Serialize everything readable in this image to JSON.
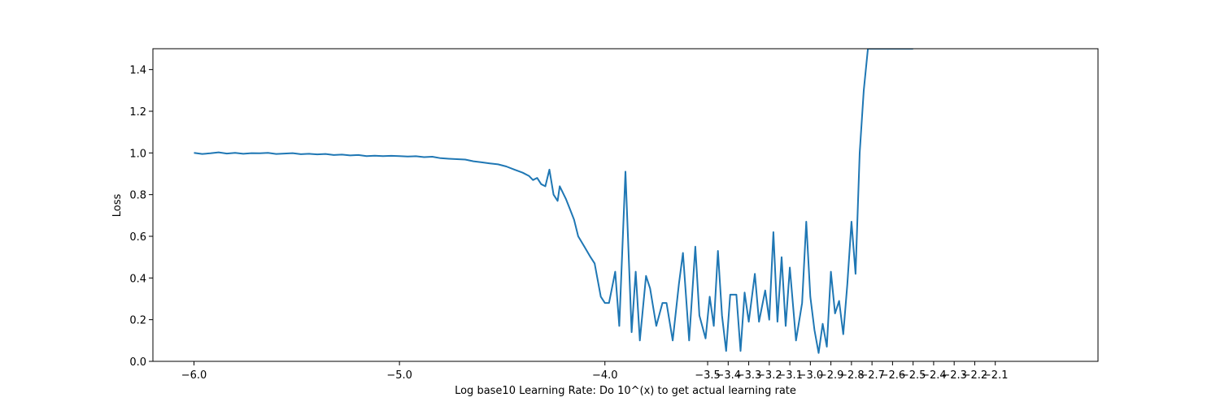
{
  "chart_data": {
    "type": "line",
    "title": "",
    "xlabel": "Log base10 Learning Rate: Do 10^(x) to get actual learning rate",
    "ylabel": "Loss",
    "xlim": [
      -6.2,
      -1.6
    ],
    "ylim": [
      0.0,
      1.5
    ],
    "grid": false,
    "line_color": "#1f77b4",
    "x_ticks": [
      {
        "value": -6.0,
        "label": "−6.0"
      },
      {
        "value": -5.0,
        "label": "−5.0"
      },
      {
        "value": -4.0,
        "label": "−4.0"
      },
      {
        "value": -3.5,
        "label": "−3.5"
      },
      {
        "value": -3.4,
        "label": "−3.4"
      },
      {
        "value": -3.3,
        "label": "−3.3"
      },
      {
        "value": -3.2,
        "label": "−3.2"
      },
      {
        "value": -3.1,
        "label": "−3.1"
      },
      {
        "value": -3.0,
        "label": "−3.0"
      },
      {
        "value": -2.9,
        "label": "−2.9"
      },
      {
        "value": -2.8,
        "label": "−2.8"
      },
      {
        "value": -2.7,
        "label": "−2.7"
      },
      {
        "value": -2.6,
        "label": "−2.6"
      },
      {
        "value": -2.5,
        "label": "−2.5"
      },
      {
        "value": -2.4,
        "label": "−2.4"
      },
      {
        "value": -2.3,
        "label": "−2.3"
      },
      {
        "value": -2.2,
        "label": "−2.2"
      },
      {
        "value": -2.1,
        "label": "−2.1"
      }
    ],
    "y_ticks": [
      {
        "value": 0.0,
        "label": "0.0"
      },
      {
        "value": 0.2,
        "label": "0.2"
      },
      {
        "value": 0.4,
        "label": "0.4"
      },
      {
        "value": 0.6,
        "label": "0.6"
      },
      {
        "value": 0.8,
        "label": "0.8"
      },
      {
        "value": 1.0,
        "label": "1.0"
      },
      {
        "value": 1.2,
        "label": "1.2"
      },
      {
        "value": 1.4,
        "label": "1.4"
      }
    ],
    "series": [
      {
        "x": [
          -6.0,
          -5.96,
          -5.92,
          -5.88,
          -5.84,
          -5.8,
          -5.76,
          -5.72,
          -5.68,
          -5.64,
          -5.6,
          -5.56,
          -5.52,
          -5.48,
          -5.44,
          -5.4,
          -5.36,
          -5.32,
          -5.28,
          -5.24,
          -5.2,
          -5.16,
          -5.12,
          -5.08,
          -5.04,
          -5.0,
          -4.96,
          -4.92,
          -4.88,
          -4.84,
          -4.8,
          -4.76,
          -4.72,
          -4.68,
          -4.64,
          -4.6,
          -4.56,
          -4.52,
          -4.48,
          -4.44,
          -4.4,
          -4.37,
          -4.35,
          -4.33,
          -4.31,
          -4.29,
          -4.27,
          -4.25,
          -4.23,
          -4.22,
          -4.19,
          -4.17,
          -4.15,
          -4.13,
          -4.1,
          -4.07,
          -4.05,
          -4.02,
          -4.0,
          -3.98,
          -3.95,
          -3.93,
          -3.9,
          -3.87,
          -3.85,
          -3.83,
          -3.8,
          -3.78,
          -3.75,
          -3.72,
          -3.7,
          -3.67,
          -3.64,
          -3.62,
          -3.59,
          -3.56,
          -3.54,
          -3.51,
          -3.49,
          -3.47,
          -3.45,
          -3.43,
          -3.41,
          -3.39,
          -3.36,
          -3.34,
          -3.32,
          -3.3,
          -3.27,
          -3.25,
          -3.22,
          -3.2,
          -3.18,
          -3.16,
          -3.14,
          -3.12,
          -3.1,
          -3.07,
          -3.04,
          -3.02,
          -3.0,
          -2.98,
          -2.96,
          -2.94,
          -2.92,
          -2.9,
          -2.88,
          -2.86,
          -2.84,
          -2.82,
          -2.8,
          -2.78,
          -2.76,
          -2.74,
          -2.72,
          -2.7,
          -2.68,
          -2.66,
          -2.64,
          -2.62,
          -2.6,
          -2.58,
          -2.56,
          -2.54,
          -2.52,
          -2.51,
          -2.5
        ],
        "y": [
          1.0,
          0.995,
          0.998,
          1.003,
          0.997,
          1.0,
          0.996,
          0.999,
          0.998,
          1.0,
          0.995,
          0.997,
          0.999,
          0.994,
          0.996,
          0.993,
          0.995,
          0.99,
          0.992,
          0.988,
          0.99,
          0.985,
          0.987,
          0.985,
          0.986,
          0.985,
          0.983,
          0.984,
          0.98,
          0.982,
          0.975,
          0.972,
          0.97,
          0.968,
          0.96,
          0.955,
          0.95,
          0.945,
          0.935,
          0.92,
          0.905,
          0.89,
          0.87,
          0.88,
          0.85,
          0.84,
          0.92,
          0.8,
          0.77,
          0.84,
          0.78,
          0.73,
          0.68,
          0.6,
          0.55,
          0.5,
          0.47,
          0.31,
          0.28,
          0.28,
          0.43,
          0.17,
          0.91,
          0.14,
          0.43,
          0.1,
          0.41,
          0.35,
          0.17,
          0.28,
          0.28,
          0.1,
          0.37,
          0.52,
          0.1,
          0.55,
          0.22,
          0.11,
          0.31,
          0.17,
          0.53,
          0.22,
          0.05,
          0.32,
          0.32,
          0.05,
          0.33,
          0.19,
          0.42,
          0.19,
          0.34,
          0.2,
          0.62,
          0.19,
          0.5,
          0.17,
          0.45,
          0.1,
          0.28,
          0.67,
          0.31,
          0.15,
          0.04,
          0.18,
          0.07,
          0.43,
          0.23,
          0.29,
          0.13,
          0.37,
          0.67,
          0.42,
          1.0,
          1.3,
          1.5,
          1.5,
          1.5,
          1.5,
          1.5,
          1.5,
          1.5,
          1.5,
          1.5,
          1.5,
          1.5,
          1.5,
          1.5
        ]
      }
    ]
  }
}
